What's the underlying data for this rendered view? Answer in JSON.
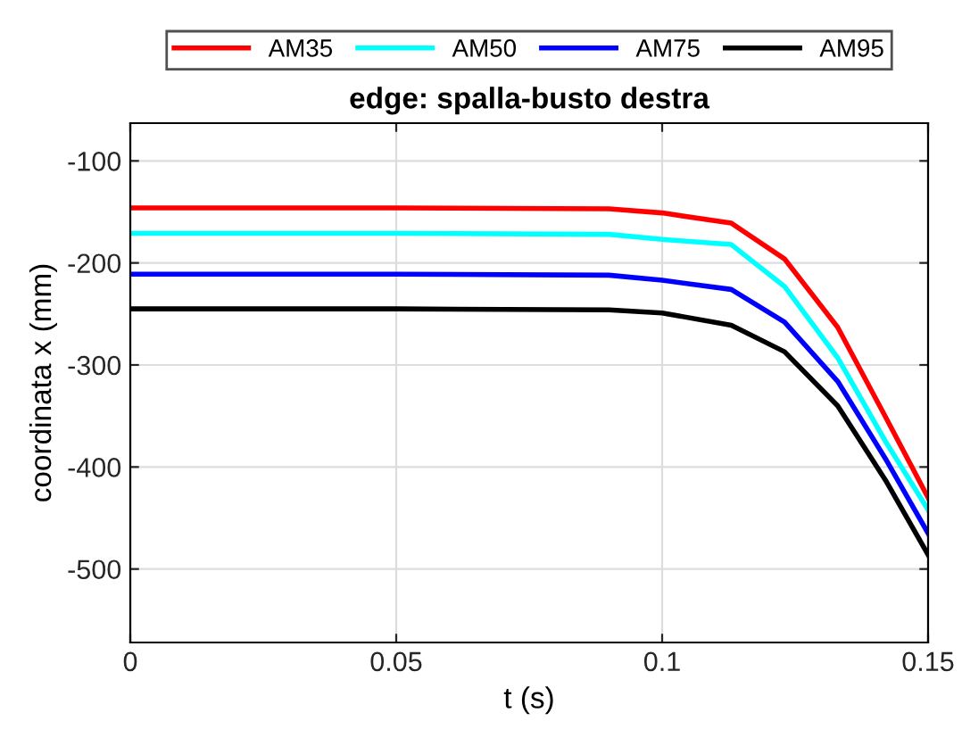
{
  "chart_data": {
    "type": "line",
    "title": "edge: spalla-busto destra",
    "xlabel": "t (s)",
    "ylabel": "coordinata x (mm)",
    "x": [
      0,
      0.05,
      0.09,
      0.1,
      0.113,
      0.123,
      0.133,
      0.142,
      0.15
    ],
    "series": [
      {
        "name": "AM35",
        "color": "#ff0000",
        "values": [
          -146,
          -146,
          -147,
          -151,
          -161,
          -196,
          -263,
          -351,
          -430
        ]
      },
      {
        "name": "AM50",
        "color": "#00ffff",
        "values": [
          -171,
          -171,
          -172,
          -177,
          -182,
          -223,
          -293,
          -375,
          -442
        ]
      },
      {
        "name": "AM75",
        "color": "#0000ff",
        "values": [
          -211,
          -211,
          -212,
          -217,
          -226,
          -258,
          -316,
          -392,
          -465
        ]
      },
      {
        "name": "AM95",
        "color": "#000000",
        "values": [
          -245,
          -245,
          -246,
          -249,
          -261,
          -287,
          -340,
          -413,
          -486
        ]
      }
    ],
    "xlim": [
      0,
      0.15
    ],
    "xticks": [
      0,
      0.05,
      0.1,
      0.15
    ],
    "ylim": [
      -572,
      -63
    ],
    "yticks": [
      -500,
      -400,
      -300,
      -200,
      -100
    ],
    "grid": true,
    "legend": "top",
    "line_style": "solid",
    "marker": "none"
  }
}
